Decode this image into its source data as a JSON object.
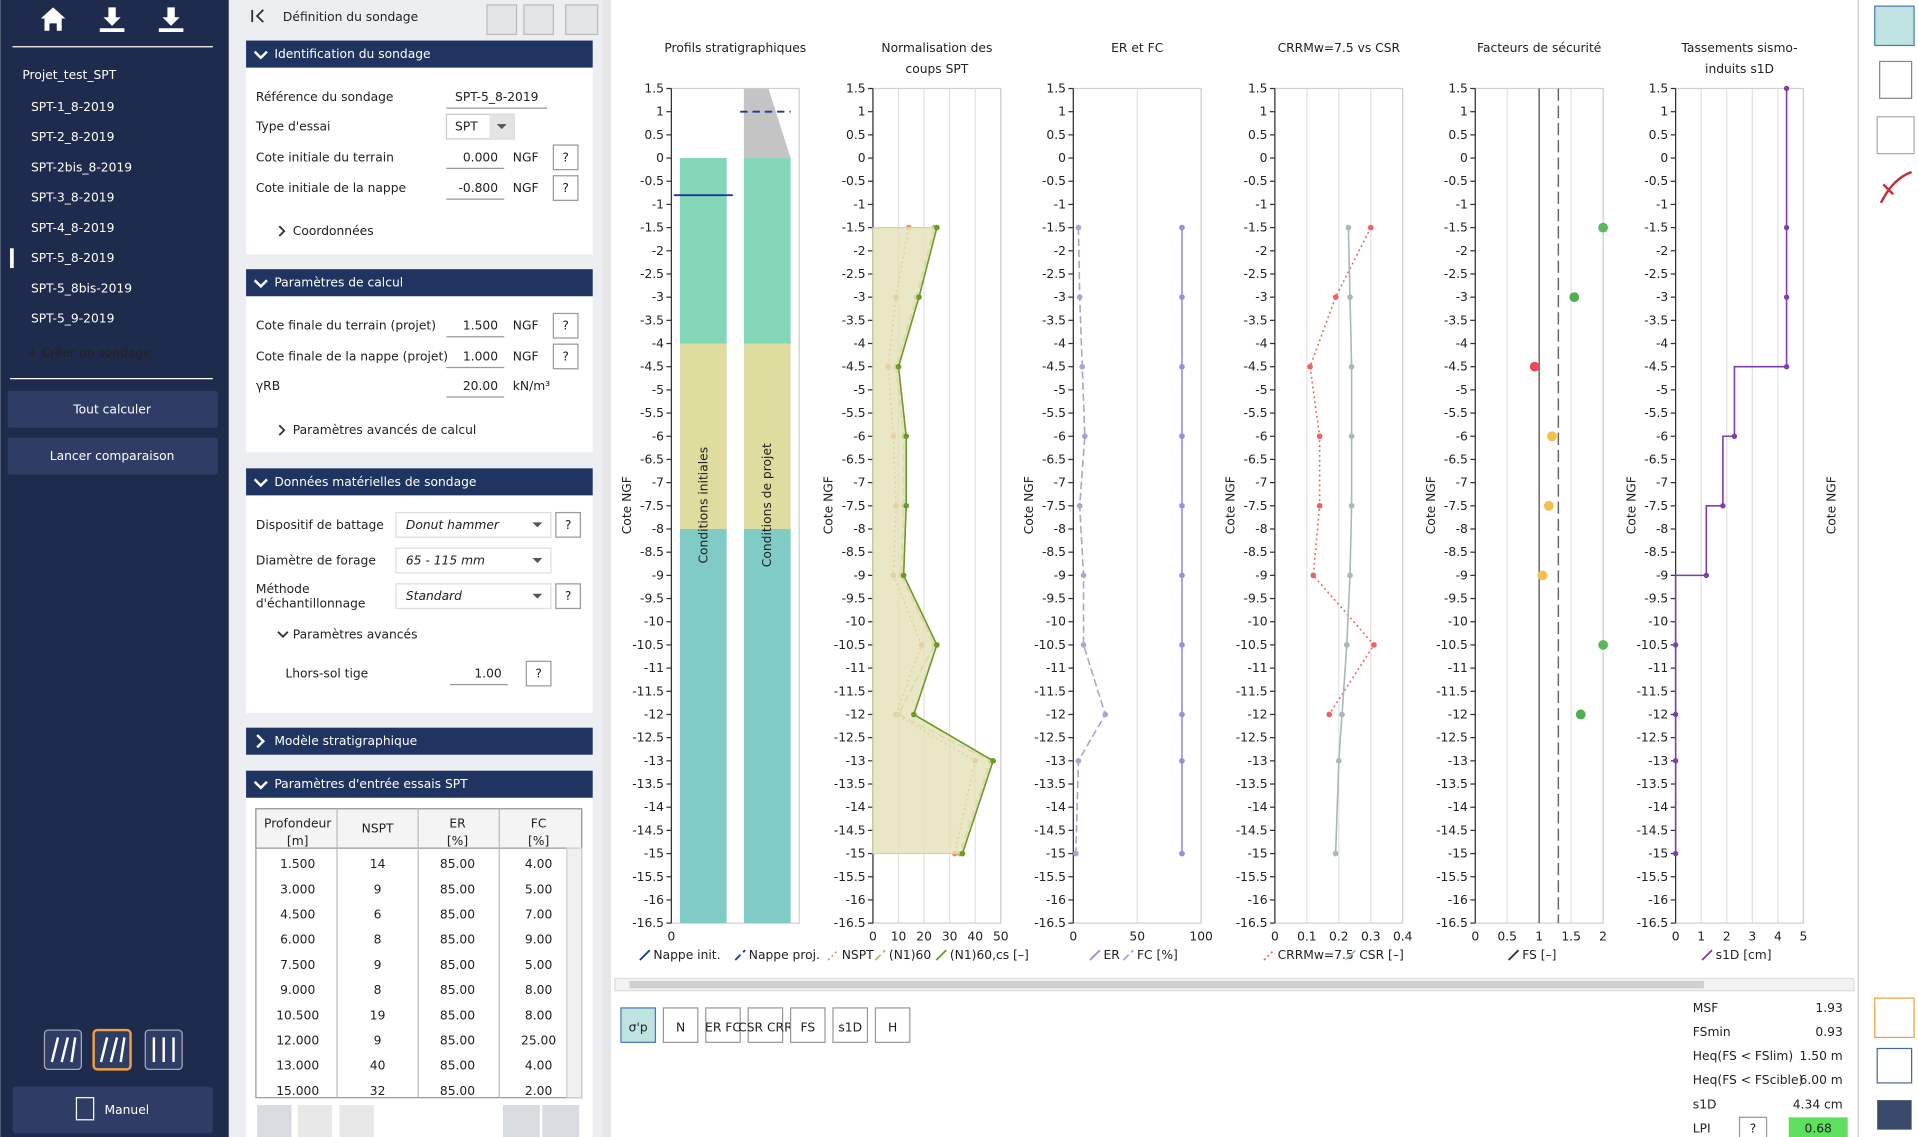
{
  "sidebar": {
    "project": "Projet_test_SPT",
    "items": [
      "SPT-1_8-2019",
      "SPT-2_8-2019",
      "SPT-2bis_8-2019",
      "SPT-3_8-2019",
      "SPT-4_8-2019",
      "SPT-5_8-2019",
      "SPT-5_8bis-2019",
      "SPT-5_9-2019"
    ],
    "selected": 5,
    "create": "+ Créer un sondage",
    "buttons": [
      "Tout calculer",
      "Lancer comparaison"
    ],
    "manual": "Manuel"
  },
  "form": {
    "title": "Définition du sondage",
    "help_label": "?",
    "sections": [
      {
        "title": "Identification du sondage",
        "expanded": true,
        "link": "Coordonnées",
        "fields": [
          {
            "label": "Référence du sondage",
            "value": "SPT-5_8-2019",
            "kind": "text"
          },
          {
            "label": "Type d'essai",
            "value": "SPT",
            "kind": "combo"
          },
          {
            "label": "Cote initiale du terrain",
            "value": "0.000",
            "unit": "NGF",
            "kind": "number",
            "help": true
          },
          {
            "label": "Cote initiale de la nappe",
            "value": "-0.800",
            "unit": "NGF",
            "kind": "number",
            "help": true
          }
        ]
      },
      {
        "title": "Paramètres de calcul",
        "expanded": true,
        "link": "Paramètres avancés de calcul",
        "fields": [
          {
            "label": "Cote finale du terrain (projet)",
            "value": "1.500",
            "unit": "NGF",
            "kind": "number",
            "help": true
          },
          {
            "label": "Cote finale de la nappe (projet)",
            "value": "1.000",
            "unit": "NGF",
            "kind": "number",
            "help": true
          },
          {
            "label": "γRB",
            "value": "20.00",
            "unit": "kN/m³",
            "kind": "number"
          }
        ]
      },
      {
        "title": "Données matérielles de sondage",
        "expanded": true,
        "link": "Paramètres avancés",
        "fields": [
          {
            "label": "Dispositif de battage",
            "value": "Donut hammer",
            "kind": "select",
            "help": true
          },
          {
            "label": "Diamètre de forage",
            "value": "65 - 115 mm",
            "kind": "select"
          },
          {
            "label_lines": [
              "Méthode",
              "d'échantillonnage"
            ],
            "value": "Standard",
            "kind": "select",
            "help": true
          },
          {
            "label": "Lhors-sol tige",
            "value": "1.00",
            "kind": "number",
            "help": true
          }
        ]
      },
      {
        "title": "Modèle stratigraphique",
        "expanded": false
      },
      {
        "title": "Paramètres d'entrée essais SPT",
        "expanded": true
      }
    ],
    "table": {
      "headers": [
        {
          "name": "Profondeur",
          "unit": "[m]"
        },
        {
          "name": "NSPT"
        },
        {
          "name": "ER",
          "unit": "[%]"
        },
        {
          "name": "FC",
          "unit": "[%]"
        }
      ],
      "rows": [
        [
          "1.500",
          "14",
          "85.00",
          "4.00"
        ],
        [
          "3.000",
          "9",
          "85.00",
          "5.00"
        ],
        [
          "4.500",
          "6",
          "85.00",
          "7.00"
        ],
        [
          "6.000",
          "8",
          "85.00",
          "9.00"
        ],
        [
          "7.500",
          "9",
          "85.00",
          "5.00"
        ],
        [
          "9.000",
          "8",
          "85.00",
          "8.00"
        ],
        [
          "10.500",
          "19",
          "85.00",
          "8.00"
        ],
        [
          "12.000",
          "9",
          "85.00",
          "25.00"
        ],
        [
          "13.000",
          "40",
          "85.00",
          "4.00"
        ],
        [
          "15.000",
          "32",
          "85.00",
          "2.00"
        ]
      ]
    }
  },
  "depth_axis": {
    "label": "Cote NGF",
    "ylim": [
      -16.5,
      1.5
    ],
    "yticks": [
      1.5,
      1,
      0.5,
      0,
      -0.5,
      -1,
      -1.5,
      -2,
      -2.5,
      -3,
      -3.5,
      -4,
      -4.5,
      -5,
      -5.5,
      -6,
      -6.5,
      -7,
      -7.5,
      -8,
      -8.5,
      -9,
      -9.5,
      -10,
      -10.5,
      -11,
      -11.5,
      -12,
      -12.5,
      -13,
      -13.5,
      -14,
      -14.5,
      -15,
      -15.5,
      -16,
      -16.5
    ],
    "depths": [
      -1.5,
      -3,
      -4.5,
      -6,
      -7.5,
      -9,
      -10.5,
      -12,
      -13,
      -15
    ]
  },
  "charts": [
    {
      "type": "strata",
      "title": [
        "Profils stratigraphiques"
      ],
      "columns": [
        "Conditions initiales",
        "Conditions de projet"
      ],
      "layers": [
        {
          "top": 0,
          "bottom": -4,
          "color": "#84d6b9"
        },
        {
          "top": -4,
          "bottom": -8,
          "color": "#dedc9e"
        },
        {
          "top": -8,
          "bottom": -16.5,
          "color": "#80cbc6"
        }
      ],
      "project_fill": {
        "top": 1.5,
        "bottom": 0,
        "color": "#c4c4c4"
      },
      "xlim": [
        0,
        1
      ],
      "xticks": [
        0
      ],
      "series": [
        {
          "name": "Nappe init.",
          "color": "#1a3a9a",
          "style": "solid",
          "values": [
            -0.8
          ]
        },
        {
          "name": "Nappe proj.",
          "color": "#1a3a9a",
          "style": "dashed",
          "values": [
            1
          ]
        }
      ]
    },
    {
      "type": "line",
      "title": [
        "Normalisation des",
        "coups SPT"
      ],
      "xlim": [
        0,
        50
      ],
      "xticks": [
        0,
        10,
        20,
        30,
        40,
        50
      ],
      "series": [
        {
          "name": "NSPT",
          "color": "#f08a5d",
          "style": "dotted",
          "values": [
            14,
            9,
            6,
            8,
            9,
            8,
            19,
            9,
            40,
            32
          ]
        },
        {
          "name": "(N1)60",
          "color": "#a8c070",
          "style": "dashed",
          "values": [
            24,
            17,
            9,
            12,
            12,
            11,
            24,
            10,
            46,
            34
          ]
        },
        {
          "name": "(N1)60,cs [–]",
          "color": "#6b9a2a",
          "style": "solid",
          "fill": "#e4e1b6",
          "values": [
            25,
            18,
            10,
            13,
            13,
            12,
            25,
            16,
            47,
            35
          ]
        }
      ]
    },
    {
      "type": "line",
      "title": [
        "ER et FC"
      ],
      "xlim": [
        0,
        100
      ],
      "xticks": [
        0,
        50,
        100
      ],
      "series": [
        {
          "name": "ER",
          "color": "#9a8ce0",
          "style": "solid",
          "values": [
            85,
            85,
            85,
            85,
            85,
            85,
            85,
            85,
            85,
            85
          ]
        },
        {
          "name": "FC [%]",
          "color": "#a9a4d6",
          "style": "dashed",
          "values": [
            4,
            5,
            7,
            9,
            5,
            8,
            8,
            25,
            4,
            2
          ]
        }
      ]
    },
    {
      "type": "line",
      "title": [
        "CRRMw=7.5 vs CSR"
      ],
      "xlim": [
        0,
        0.4
      ],
      "xticks": [
        0,
        0.1,
        0.2,
        0.3,
        0.4
      ],
      "series": [
        {
          "name": "CRRMw=7.5",
          "color": "#f06060",
          "style": "dotted",
          "values": [
            0.3,
            0.19,
            0.11,
            0.14,
            0.14,
            0.12,
            0.31,
            0.17,
            null,
            null
          ]
        },
        {
          "name": "CSR [–]",
          "color": "#a9b8b8",
          "style": "solid",
          "values": [
            0.23,
            0.235,
            0.24,
            0.24,
            0.24,
            0.235,
            0.225,
            0.21,
            0.2,
            0.19
          ]
        }
      ]
    },
    {
      "type": "fs",
      "title": [
        "Facteurs de sécurité"
      ],
      "xlim": [
        0,
        2
      ],
      "xticks": [
        0,
        0.5,
        1,
        1.5,
        2
      ],
      "reference_lines": [
        1,
        1.3
      ],
      "series": [
        {
          "name": "FS [–]",
          "color": "#333333",
          "values": [
            2,
            1.55,
            0.93,
            1.2,
            1.15,
            1.05,
            2,
            1.65,
            null,
            null
          ],
          "colors": [
            "#5cb85c",
            "#4caf50",
            "#e84a5f",
            "#f5c04a",
            "#f5c04a",
            "#f5c04a",
            "#5cb85c",
            "#4caf50",
            null,
            null
          ]
        }
      ]
    },
    {
      "type": "step",
      "title": [
        "Tassements sismo-",
        "induits s1D"
      ],
      "xlim": [
        0,
        5
      ],
      "xticks": [
        0,
        1,
        2,
        3,
        4,
        5
      ],
      "depths": [
        1.5,
        -1.5,
        -3,
        -4.5,
        -6,
        -7.5,
        -9,
        -10.5,
        -12,
        -13,
        -15
      ],
      "series": [
        {
          "name": "s1D [cm]",
          "color": "#7b3fb0",
          "values": [
            4.34,
            4.34,
            4.34,
            4.34,
            2.3,
            1.85,
            1.2,
            0,
            0,
            0,
            0
          ]
        }
      ]
    }
  ],
  "view_icons": [
    "σ'p",
    "N",
    "ER FC",
    "CSR CRR",
    "FS",
    "s1D",
    "H"
  ],
  "summary": [
    {
      "label": "MSF",
      "value": "1.93"
    },
    {
      "label": "FSmin",
      "value": "0.93"
    },
    {
      "label": "Heq(FS < FSlim)",
      "value": "1.50 m"
    },
    {
      "label": "Heq(FS < FScible)",
      "value": "6.00 m"
    },
    {
      "label": "s1D",
      "value": "4.34 cm"
    },
    {
      "label": "LPI",
      "value": "0.68",
      "help": true
    }
  ]
}
